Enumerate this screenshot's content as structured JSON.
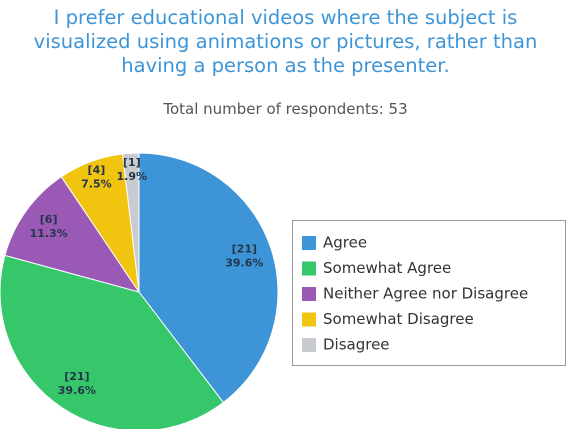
{
  "chart_data": {
    "type": "pie",
    "title": "I prefer educational videos where the subject is visualized using animations or pictures, rather than having a person as the presenter.",
    "subtitle": "Total number of respondents: 53",
    "categories": [
      "Agree",
      "Somewhat Agree",
      "Neither Agree nor Disagree",
      "Somewhat Disagree",
      "Disagree"
    ],
    "values": [
      21,
      21,
      6,
      4,
      1
    ],
    "value_labels": [
      "[21]",
      "[21]",
      "[6]",
      "[4]",
      "[1]"
    ],
    "percents": [
      39.6,
      39.6,
      11.3,
      7.5,
      1.9
    ],
    "percent_labels": [
      "39.6%",
      "39.6%",
      "11.3%",
      "7.5%",
      "1.9%"
    ],
    "colors": [
      "#3d95d8",
      "#35c76a",
      "#9b59b6",
      "#f1c40f",
      "#c8ccd0"
    ],
    "legend": "right"
  }
}
